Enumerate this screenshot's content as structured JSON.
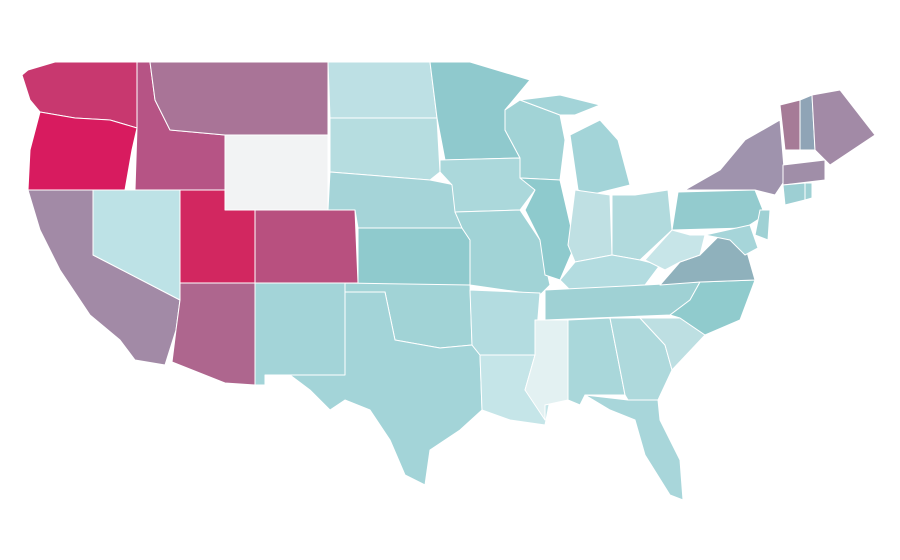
{
  "map": {
    "regions": [
      {
        "color": "#c8386f"
      },
      {
        "color": "#d81b5f"
      },
      {
        "color": "#a28aa6"
      },
      {
        "color": "#bde2e6"
      },
      {
        "color": "#b65485"
      },
      {
        "color": "#a97497"
      },
      {
        "color": "#f2f3f4"
      },
      {
        "color": "#d22760"
      },
      {
        "color": "#b8507f"
      },
      {
        "color": "#ae668e"
      },
      {
        "color": "#a3d4d8"
      },
      {
        "color": "#bde0e4"
      },
      {
        "color": "#b6dde0"
      },
      {
        "color": "#a5d4d8"
      },
      {
        "color": "#8fcacd"
      },
      {
        "color": "#a1d3d6"
      },
      {
        "color": "#a3d4d8"
      },
      {
        "color": "#8fc9cd"
      },
      {
        "color": "#abd8db"
      },
      {
        "color": "#a1d3d6"
      },
      {
        "color": "#b3dce0"
      },
      {
        "color": "#c5e5e8"
      },
      {
        "color": "#a1d3d6"
      },
      {
        "color": "#8ecacd"
      },
      {
        "color": "#a3d4d8"
      },
      {
        "color": "#a3d4d8"
      },
      {
        "color": "#bfe0e3"
      },
      {
        "color": "#b1dadd"
      },
      {
        "color": "#b3dce0"
      },
      {
        "color": "#9fd1d4"
      },
      {
        "color": "#e3f1f2"
      },
      {
        "color": "#a9d7da"
      },
      {
        "color": "#aed9dc"
      },
      {
        "color": "#a8d6da"
      },
      {
        "color": "#bddfe2"
      },
      {
        "color": "#90cbcd"
      },
      {
        "color": "#8fb1bc"
      },
      {
        "color": "#c7e5e8"
      },
      {
        "color": "#93cbce"
      },
      {
        "color": "#9f93ad"
      },
      {
        "color": "#9fd1d4"
      },
      {
        "color": "#a6d5d9"
      },
      {
        "color": "#a67b97"
      },
      {
        "color": "#8fa4b6"
      },
      {
        "color": "#a28aa6"
      },
      {
        "color": "#a08ea8"
      },
      {
        "color": "#9dcfd3"
      },
      {
        "color": "#9fd1d4"
      }
    ]
  }
}
